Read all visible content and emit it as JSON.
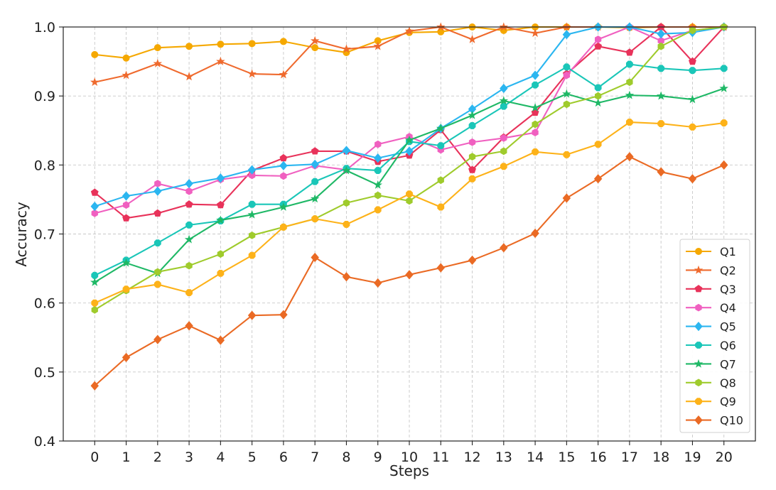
{
  "chart_data": {
    "type": "line",
    "xlabel": "Steps",
    "ylabel": "Accuracy",
    "xlim": [
      -1,
      21
    ],
    "ylim": [
      0.4,
      1.0
    ],
    "x": [
      0,
      1,
      2,
      3,
      4,
      5,
      6,
      7,
      8,
      9,
      10,
      11,
      12,
      13,
      14,
      15,
      16,
      17,
      18,
      19,
      20
    ],
    "xticks": [
      "0",
      "1",
      "2",
      "3",
      "4",
      "5",
      "6",
      "7",
      "8",
      "9",
      "10",
      "11",
      "12",
      "13",
      "14",
      "15",
      "16",
      "17",
      "18",
      "19",
      "20"
    ],
    "yticks": [
      "0.4",
      "0.5",
      "0.6",
      "0.7",
      "0.8",
      "0.9",
      "1.0"
    ],
    "grid": true,
    "legend_position": "lower-right",
    "series": [
      {
        "name": "Q1",
        "color": "#f5a800",
        "marker": "circle",
        "values": [
          0.96,
          0.955,
          0.97,
          0.972,
          0.975,
          0.976,
          0.979,
          0.97,
          0.963,
          0.98,
          0.992,
          0.993,
          1.0,
          0.995,
          1.0,
          1.0,
          1.0,
          0.999,
          1.0,
          1.0,
          1.0
        ]
      },
      {
        "name": "Q2",
        "color": "#ef6a2e",
        "marker": "star",
        "values": [
          0.92,
          0.93,
          0.947,
          0.928,
          0.95,
          0.932,
          0.931,
          0.98,
          0.968,
          0.972,
          0.994,
          1.0,
          0.982,
          1.0,
          0.991,
          1.0,
          1.0,
          1.0,
          1.0,
          1.0,
          1.0
        ]
      },
      {
        "name": "Q3",
        "color": "#e8325a",
        "marker": "pentagon",
        "values": [
          0.76,
          0.723,
          0.73,
          0.743,
          0.742,
          0.792,
          0.81,
          0.82,
          0.82,
          0.805,
          0.814,
          0.851,
          0.793,
          0.84,
          0.876,
          0.932,
          0.972,
          0.963,
          1.0,
          0.95,
          1.0
        ]
      },
      {
        "name": "Q4",
        "color": "#f060c0",
        "marker": "hexagon",
        "values": [
          0.73,
          0.742,
          0.773,
          0.762,
          0.779,
          0.785,
          0.784,
          0.799,
          0.793,
          0.83,
          0.841,
          0.822,
          0.833,
          0.839,
          0.847,
          0.93,
          0.982,
          1.0,
          0.98,
          0.995,
          1.0
        ]
      },
      {
        "name": "Q5",
        "color": "#2bb6f0",
        "marker": "diamond",
        "values": [
          0.74,
          0.755,
          0.762,
          0.773,
          0.781,
          0.793,
          0.799,
          0.801,
          0.821,
          0.81,
          0.82,
          0.853,
          0.881,
          0.911,
          0.93,
          0.989,
          1.0,
          1.0,
          0.99,
          0.992,
          1.0
        ]
      },
      {
        "name": "Q6",
        "color": "#1ac6b8",
        "marker": "octagon",
        "values": [
          0.64,
          0.662,
          0.687,
          0.713,
          0.719,
          0.743,
          0.743,
          0.776,
          0.795,
          0.792,
          0.834,
          0.828,
          0.857,
          0.885,
          0.916,
          0.942,
          0.912,
          0.946,
          0.94,
          0.937,
          0.94
        ]
      },
      {
        "name": "Q7",
        "color": "#1fb866",
        "marker": "star",
        "values": [
          0.63,
          0.658,
          0.643,
          0.692,
          0.72,
          0.728,
          0.739,
          0.751,
          0.792,
          0.771,
          0.836,
          0.853,
          0.872,
          0.893,
          0.883,
          0.903,
          0.89,
          0.901,
          0.9,
          0.895,
          0.911
        ]
      },
      {
        "name": "Q8",
        "color": "#9fcb2c",
        "marker": "hexagon",
        "values": [
          0.59,
          0.618,
          0.645,
          0.654,
          0.671,
          0.698,
          0.71,
          0.722,
          0.745,
          0.756,
          0.748,
          0.778,
          0.812,
          0.82,
          0.859,
          0.888,
          0.9,
          0.92,
          0.972,
          0.995,
          1.0
        ]
      },
      {
        "name": "Q9",
        "color": "#fdb219",
        "marker": "octagon",
        "values": [
          0.6,
          0.62,
          0.627,
          0.615,
          0.643,
          0.669,
          0.71,
          0.722,
          0.714,
          0.735,
          0.758,
          0.739,
          0.78,
          0.798,
          0.819,
          0.815,
          0.83,
          0.862,
          0.86,
          0.855,
          0.861
        ]
      },
      {
        "name": "Q10",
        "color": "#ea6a24",
        "marker": "diamond",
        "values": [
          0.48,
          0.521,
          0.547,
          0.567,
          0.546,
          0.582,
          0.583,
          0.666,
          0.638,
          0.629,
          0.641,
          0.651,
          0.662,
          0.68,
          0.701,
          0.752,
          0.78,
          0.812,
          0.79,
          0.78,
          0.8
        ]
      }
    ]
  }
}
